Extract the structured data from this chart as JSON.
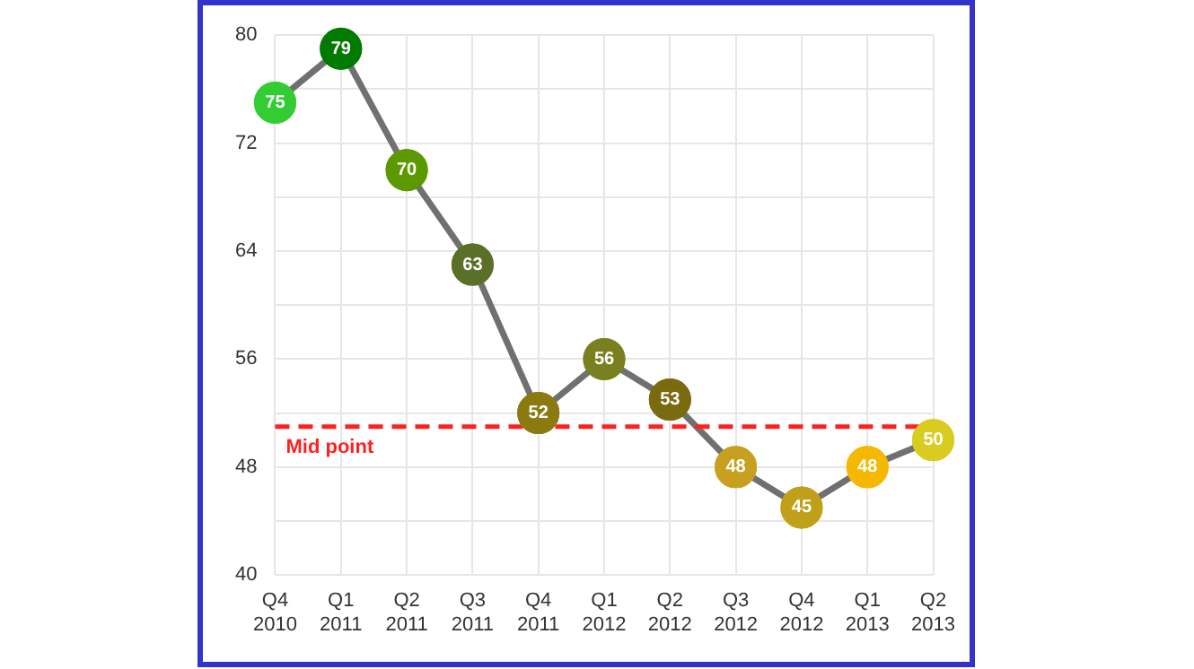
{
  "chart_data": {
    "type": "line",
    "categories": [
      "Q4 2010",
      "Q1 2011",
      "Q2 2011",
      "Q3 2011",
      "Q4 2011",
      "Q1 2012",
      "Q2 2012",
      "Q3 2012",
      "Q4 2012",
      "Q1 2013",
      "Q2 2013"
    ],
    "series": [
      {
        "color": "#707070",
        "colors": [
          "#33cc33",
          "#007a00",
          "#5c9900",
          "#5a7028",
          "#8a7a10",
          "#7a8020",
          "#7a6a10",
          "#c8a020",
          "#c0a018",
          "#f5b800",
          "#d8cc20"
        ],
        "values": [
          75,
          79,
          70,
          63,
          52,
          56,
          53,
          48,
          45,
          48,
          50
        ]
      }
    ],
    "ylim": [
      40,
      80
    ],
    "yticks": [
      40,
      {
        "value": 44,
        "label": null
      },
      48,
      {
        "value": 52,
        "label": null
      },
      56,
      {
        "value": 60,
        "label": null
      },
      64,
      {
        "value": 68,
        "label": null
      },
      72,
      {
        "value": 76,
        "label": null
      },
      80
    ],
    "grid": true,
    "legend": false,
    "marker": "circle",
    "line_style": "solid",
    "data_labels": true,
    "ref_lines": [
      {
        "axis": "y",
        "value": 51,
        "label": "Mid point",
        "color": "#ff2020",
        "line_style": "dashed"
      }
    ]
  }
}
